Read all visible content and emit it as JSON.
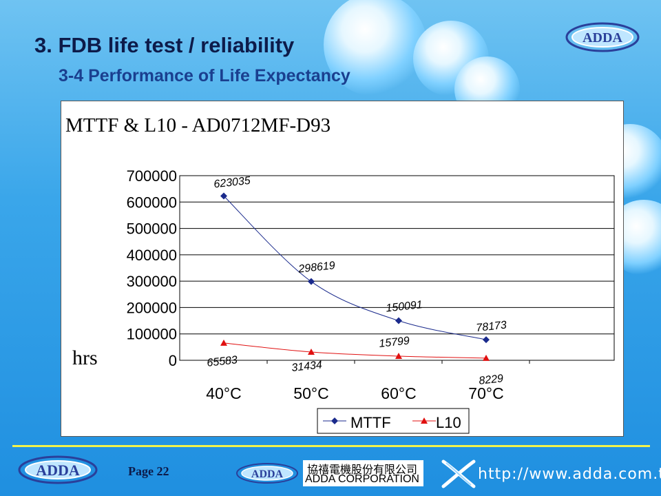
{
  "slide": {
    "title": "3. FDB life test / reliability",
    "subtitle": "3-4 Performance of Life Expectancy",
    "logo_text": "ADDA",
    "page_label": "Page 22",
    "corp_cn": "協禧電機股份有限公司",
    "corp_en": "ADDA CORPORATION",
    "website": "http://www.adda.com.tw"
  },
  "chart_data": {
    "type": "line",
    "title": "MTTF & L10 - AD0712MF-D93",
    "ylabel": "hrs",
    "xlabel": "",
    "categories": [
      "40°C",
      "50°C",
      "60°C",
      "70°C"
    ],
    "ylim": [
      0,
      700000
    ],
    "yticks": [
      {
        "value": 0,
        "label": "0"
      },
      {
        "value": 100000,
        "label": "100000"
      },
      {
        "value": 200000,
        "label": "200000"
      },
      {
        "value": 300000,
        "label": "300000"
      },
      {
        "value": 400000,
        "label": "400000"
      },
      {
        "value": 500000,
        "label": "500000"
      },
      {
        "value": 600000,
        "label": "600000"
      },
      {
        "value": 700000,
        "label": "700000"
      }
    ],
    "grid": true,
    "legend_position": "bottom-right",
    "series": [
      {
        "name": "MTTF",
        "color": "#1a2a8c",
        "marker": "diamond",
        "values": [
          623035,
          298619,
          150091,
          78173
        ],
        "labels": [
          "623035",
          "298619",
          "150091",
          "78173"
        ]
      },
      {
        "name": "L10",
        "color": "#e01010",
        "marker": "triangle",
        "values": [
          65583,
          31434,
          15799,
          8229
        ],
        "labels": [
          "65583",
          "31434",
          "15799",
          "8229"
        ]
      }
    ]
  }
}
